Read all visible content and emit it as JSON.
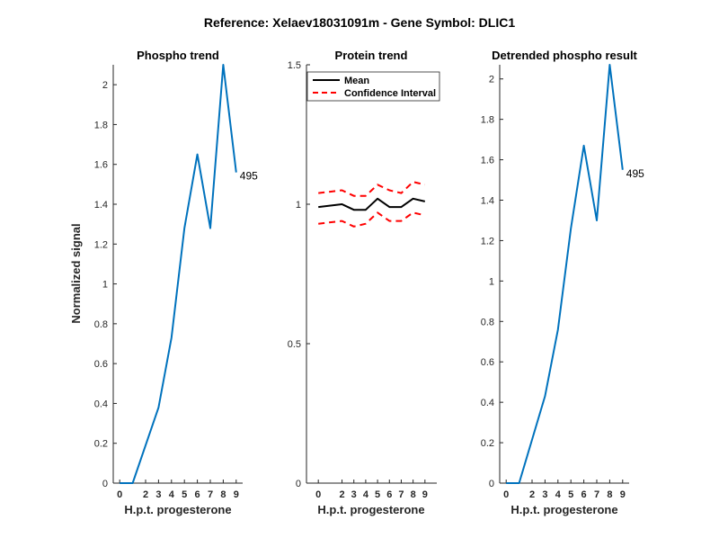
{
  "figure": {
    "title": "Reference:  Xelaev18031091m - Gene Symbol:  DLIC1"
  },
  "chart_data": [
    {
      "type": "line",
      "title": "Phospho trend",
      "xlabel": "H.p.t. progesterone",
      "ylabel": "Normalized signal",
      "x": [
        0,
        1,
        2,
        3,
        4,
        5,
        6,
        7,
        8,
        9
      ],
      "xticks": [
        0,
        2,
        3,
        4,
        5,
        6,
        7,
        8,
        9
      ],
      "xlim": [
        -0.5,
        9.5
      ],
      "ylim": [
        0,
        2.1
      ],
      "yticks": [
        0,
        0.2,
        0.4,
        0.6,
        0.8,
        1,
        1.2,
        1.4,
        1.6,
        1.8,
        2
      ],
      "series": [
        {
          "values": [
            0,
            0,
            0.38,
            0.73,
            1.28,
            1.65,
            1.28,
            2.1,
            1.56
          ],
          "x": [
            0,
            1,
            3,
            4,
            5,
            6,
            7,
            8,
            9
          ],
          "color": "#0072BD",
          "style": "solid"
        }
      ],
      "annotation": {
        "text": "495",
        "x": 9,
        "y": 1.56
      },
      "grid": false
    },
    {
      "type": "line",
      "title": "Protein trend",
      "xlabel": "H.p.t. progesterone",
      "ylabel": "",
      "x": [
        0,
        2,
        3,
        4,
        5,
        6,
        7,
        8,
        9
      ],
      "xticks": [
        0,
        2,
        3,
        4,
        5,
        6,
        7,
        8,
        9
      ],
      "xlim": [
        -1,
        10
      ],
      "ylim": [
        0,
        1.5
      ],
      "yticks": [
        0,
        0.5,
        1,
        1.5
      ],
      "series": [
        {
          "name": "Mean",
          "values": [
            0.99,
            1.0,
            0.98,
            0.98,
            1.02,
            0.99,
            0.99,
            1.02,
            1.01
          ],
          "color": "#000000",
          "style": "solid"
        },
        {
          "name": "Confidence Interval",
          "values": [
            1.04,
            1.05,
            1.03,
            1.03,
            1.07,
            1.05,
            1.04,
            1.08,
            1.07
          ],
          "color": "#FF0000",
          "style": "dashed"
        },
        {
          "values": [
            0.93,
            0.94,
            0.92,
            0.93,
            0.97,
            0.94,
            0.94,
            0.97,
            0.96
          ],
          "color": "#FF0000",
          "style": "dashed"
        }
      ],
      "legend": {
        "placement": "top-right"
      },
      "grid": false
    },
    {
      "type": "line",
      "title": "Detrended phospho result",
      "xlabel": "H.p.t. progesterone",
      "ylabel": "",
      "x": [
        0,
        1,
        3,
        4,
        5,
        6,
        7,
        8,
        9
      ],
      "xticks": [
        0,
        2,
        3,
        4,
        5,
        6,
        7,
        8,
        9
      ],
      "xlim": [
        -0.5,
        9.5
      ],
      "ylim": [
        0,
        2.07
      ],
      "yticks": [
        0,
        0.2,
        0.4,
        0.6,
        0.8,
        1,
        1.2,
        1.4,
        1.6,
        1.8,
        2
      ],
      "series": [
        {
          "values": [
            0,
            0,
            0.43,
            0.76,
            1.26,
            1.67,
            1.3,
            2.07,
            1.55
          ],
          "color": "#0072BD",
          "style": "solid"
        }
      ],
      "annotation": {
        "text": "495",
        "x": 9,
        "y": 1.55
      },
      "grid": false
    }
  ]
}
